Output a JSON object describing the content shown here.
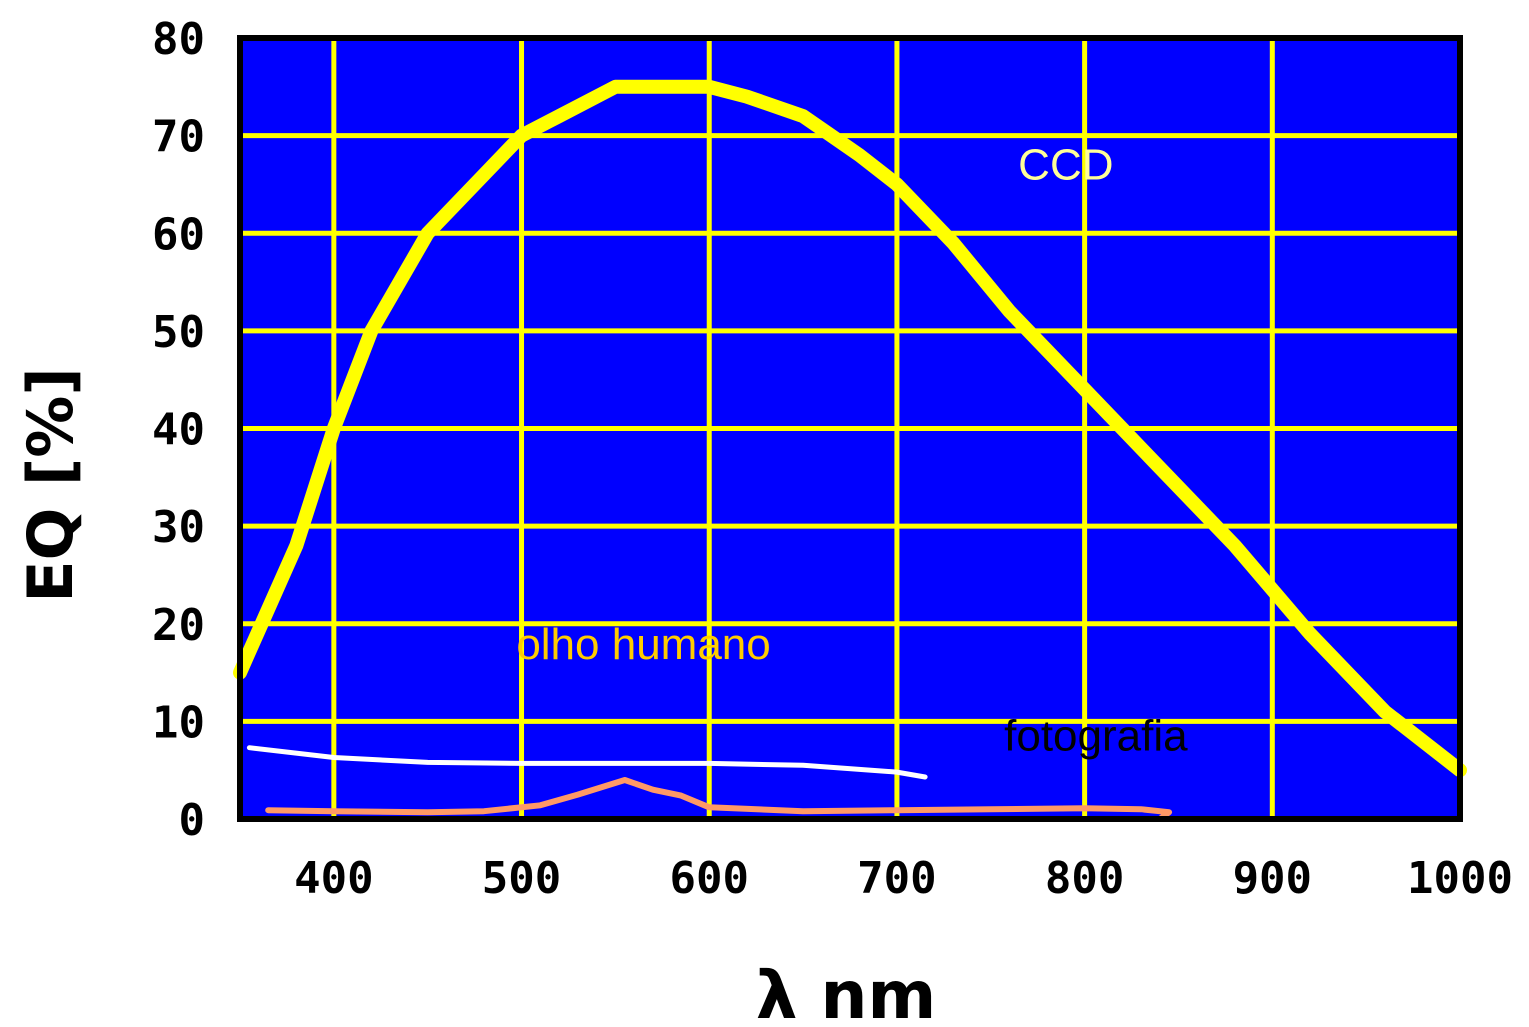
{
  "chart_data": {
    "type": "line",
    "xlabel": "λ nm",
    "ylabel": "EQ [%]",
    "xlim": [
      350,
      1000
    ],
    "ylim": [
      0,
      80
    ],
    "x_ticks": [
      400,
      500,
      600,
      700,
      800,
      900,
      1000
    ],
    "y_ticks": [
      0,
      10,
      20,
      30,
      40,
      50,
      60,
      70,
      80
    ],
    "grid": true,
    "colors": {
      "background": "#0000ff",
      "grid": "#ffff00",
      "ccd": "#ffff00",
      "eye": "#ffffff",
      "film": "#ff9966",
      "eye_label": "#ffcc00"
    },
    "series": [
      {
        "name": "CCD",
        "x": [
          350,
          380,
          400,
          420,
          450,
          480,
          500,
          520,
          550,
          580,
          600,
          620,
          650,
          680,
          700,
          730,
          760,
          800,
          840,
          880,
          920,
          960,
          1000
        ],
        "y": [
          15,
          28,
          40,
          50,
          60,
          66,
          70,
          72,
          75,
          75,
          75,
          74,
          72,
          68,
          65,
          59,
          52,
          44,
          36,
          28,
          19,
          11,
          5
        ]
      },
      {
        "name": "olho humano",
        "x": [
          355,
          400,
          450,
          500,
          550,
          600,
          650,
          700,
          715
        ],
        "y": [
          7.3,
          6.3,
          5.8,
          5.7,
          5.7,
          5.7,
          5.5,
          4.8,
          4.3
        ]
      },
      {
        "name": "fotografia",
        "x": [
          365,
          400,
          450,
          480,
          510,
          530,
          555,
          570,
          585,
          600,
          650,
          700,
          750,
          800,
          830,
          845,
          840
        ],
        "y": [
          0.9,
          0.8,
          0.7,
          0.8,
          1.4,
          2.5,
          4.0,
          3.0,
          2.4,
          1.2,
          0.8,
          0.9,
          1.0,
          1.1,
          1.0,
          0.7,
          0.0
        ]
      }
    ]
  }
}
